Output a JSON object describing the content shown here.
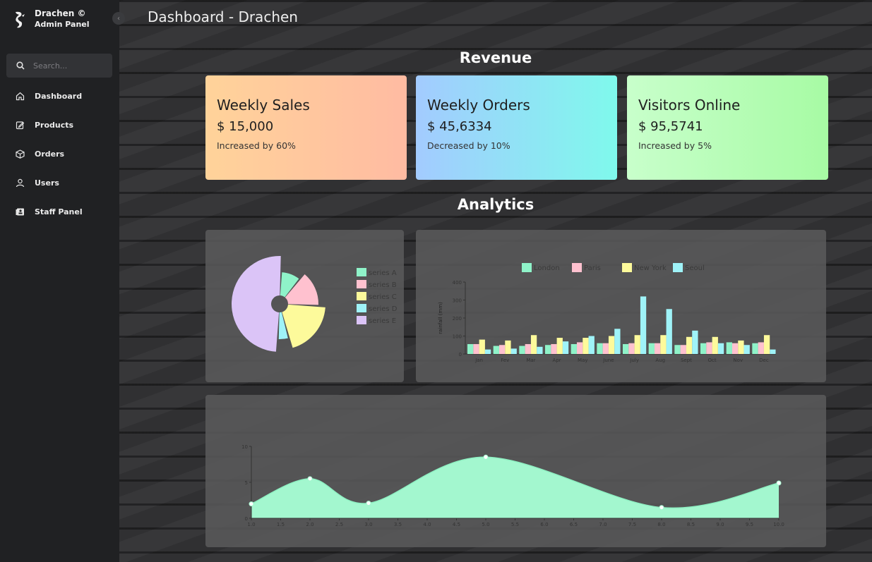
{
  "sidebar": {
    "brand_name": "Drachen ©",
    "brand_sub": "Admin Panel",
    "collapse_glyph": "‹",
    "search_placeholder": "Search...",
    "items": [
      {
        "label": "Dashboard",
        "icon": "home-icon"
      },
      {
        "label": "Products",
        "icon": "edit-icon"
      },
      {
        "label": "Orders",
        "icon": "box-icon"
      },
      {
        "label": "Users",
        "icon": "user-icon"
      },
      {
        "label": "Staff Panel",
        "icon": "id-card-icon"
      }
    ]
  },
  "header": {
    "title": "Dashboard - Drachen"
  },
  "sections": {
    "revenue": "Revenue",
    "analytics": "Analytics"
  },
  "cards": [
    {
      "title": "Weekly Sales",
      "value": "$ 15,000",
      "note": "Increased by 60%"
    },
    {
      "title": "Weekly Orders",
      "value": "$ 45,6334",
      "note": "Decreased by 10%"
    },
    {
      "title": "Visitors Online",
      "value": "$ 95,5741",
      "note": "Increased by 5%"
    }
  ],
  "colors": {
    "series_a": "#8ff3c9",
    "series_b": "#ffc1cf",
    "series_c": "#fdfa9b",
    "series_d": "#9ff3f8",
    "series_e": "#dbc4f7"
  },
  "chart_data": [
    {
      "type": "pie",
      "legend": [
        "series A",
        "series B",
        "series C",
        "series D",
        "series E"
      ],
      "values": [
        10,
        15,
        20,
        5,
        50
      ],
      "legend_position": "right"
    },
    {
      "type": "bar",
      "categories": [
        "Jan",
        "Fev",
        "Mar",
        "Apr",
        "May",
        "June",
        "July",
        "Aug",
        "Sept",
        "Oct",
        "Nov",
        "Dec"
      ],
      "series": [
        {
          "name": "London",
          "values": [
            55,
            45,
            45,
            50,
            55,
            60,
            55,
            60,
            50,
            60,
            65,
            60
          ]
        },
        {
          "name": "Paris",
          "values": [
            55,
            50,
            55,
            55,
            65,
            60,
            60,
            60,
            50,
            65,
            60,
            65
          ]
        },
        {
          "name": "New York",
          "values": [
            80,
            75,
            105,
            90,
            90,
            100,
            105,
            105,
            95,
            95,
            75,
            105
          ]
        },
        {
          "name": "Seoul",
          "values": [
            25,
            30,
            40,
            70,
            100,
            140,
            320,
            250,
            130,
            60,
            50,
            25
          ]
        }
      ],
      "ylabel": "rainfall (mm)",
      "yticks": [
        0,
        100,
        200,
        300,
        400
      ],
      "ylim": [
        0,
        400
      ],
      "legend_position": "top"
    },
    {
      "type": "area",
      "x": [
        1,
        2,
        3,
        5,
        8,
        10
      ],
      "y": [
        2,
        5.5,
        2.1,
        8.5,
        1.5,
        4.9
      ],
      "xticks": [
        "1.0",
        "1.5",
        "2.0",
        "2.5",
        "3.0",
        "3.5",
        "4.0",
        "4.5",
        "5.0",
        "5.5",
        "6.0",
        "6.5",
        "7.0",
        "7.5",
        "8.0",
        "8.5",
        "9.0",
        "9.5",
        "10.0"
      ],
      "yticks": [
        "0",
        "5",
        "10"
      ],
      "xlim": [
        1,
        10
      ],
      "ylim": [
        0,
        10
      ]
    }
  ]
}
